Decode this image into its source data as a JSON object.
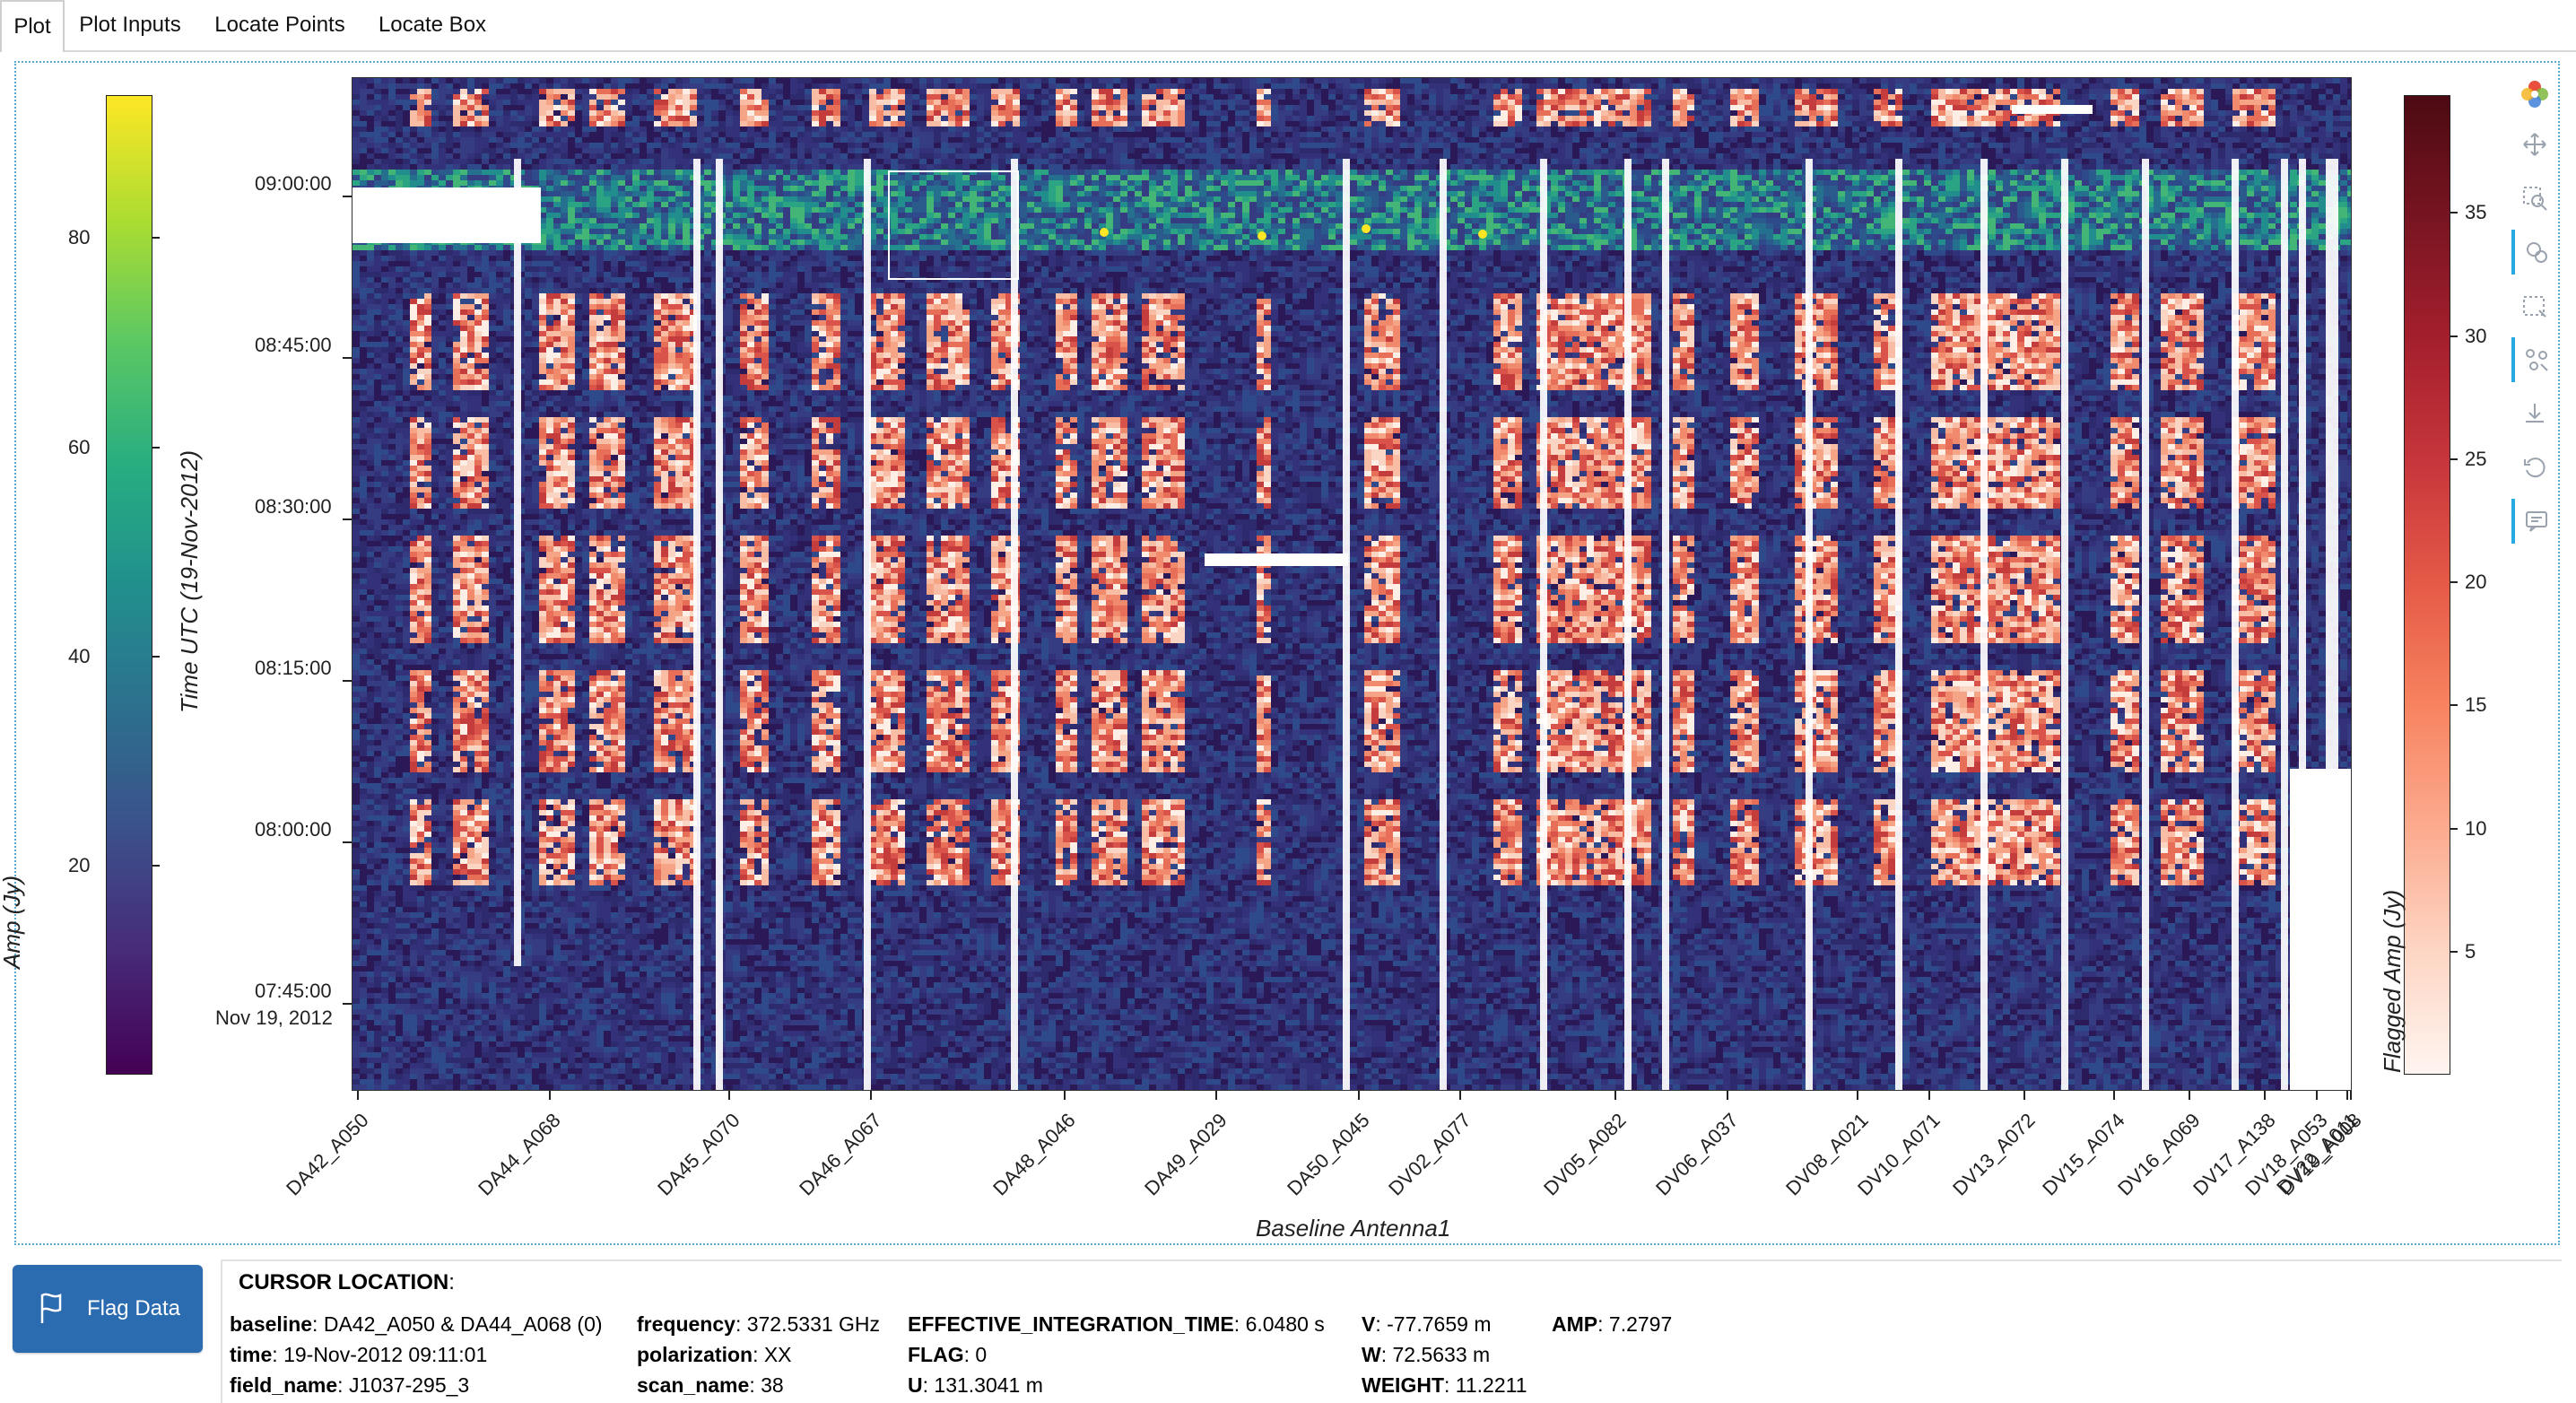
{
  "tabs": [
    {
      "label": "Plot",
      "active": true
    },
    {
      "label": "Plot Inputs",
      "active": false
    },
    {
      "label": "Locate Points",
      "active": false
    },
    {
      "label": "Locate Box",
      "active": false
    }
  ],
  "plot": {
    "left_colorbar": {
      "title": "Amp (Jy)",
      "ticks": [
        "80",
        "60",
        "40",
        "20"
      ],
      "colormap": "viridis"
    },
    "right_colorbar": {
      "title": "Flagged Amp (Jy)",
      "ticks": [
        "35",
        "30",
        "25",
        "20",
        "15",
        "10",
        "5"
      ],
      "colormap": "reds"
    },
    "y_axis": {
      "title": "Time UTC (19-Nov-2012)",
      "ticks": [
        "09:00:00",
        "08:45:00",
        "08:30:00",
        "08:15:00",
        "08:00:00",
        "07:45:00"
      ],
      "date_label": "Nov 19, 2012"
    },
    "x_axis": {
      "title": "Baseline Antenna1",
      "ticks": [
        "DA42_A050",
        "DA44_A068",
        "DA45_A070",
        "DA46_A067",
        "DA48_A046",
        "DA49_A029",
        "DA50_A045",
        "DV02_A077",
        "DV05_A082",
        "DV06_A037",
        "DV08_A021",
        "DV10_A071",
        "DV13_A072",
        "DV15_A074",
        "DV16_A069",
        "DV17_A138",
        "DV18_A053",
        "DV19_A008",
        "DV22_A011"
      ]
    }
  },
  "toolbar": [
    {
      "name": "bokeh-logo-icon"
    },
    {
      "name": "pan-icon"
    },
    {
      "name": "box-zoom-icon"
    },
    {
      "name": "tap-select-icon"
    },
    {
      "name": "box-select-icon"
    },
    {
      "name": "lasso-select-icon"
    },
    {
      "name": "save-icon"
    },
    {
      "name": "reset-icon"
    },
    {
      "name": "hover-icon"
    }
  ],
  "flag_button": {
    "label": "Flag Data"
  },
  "cursor": {
    "title": "CURSOR LOCATION",
    "baseline": {
      "key": "baseline",
      "value": "DA42_A050 & DA44_A068 (0)"
    },
    "time": {
      "key": "time",
      "value": "19-Nov-2012 09:11:01"
    },
    "field_name": {
      "key": "field_name",
      "value": "J1037-295_3"
    },
    "frequency": {
      "key": "frequency",
      "value": "372.5331 GHz"
    },
    "polarization": {
      "key": "polarization",
      "value": "XX"
    },
    "scan_name": {
      "key": "scan_name",
      "value": "38"
    },
    "effective_integration_time": {
      "key": "EFFECTIVE_INTEGRATION_TIME",
      "value": "6.0480 s"
    },
    "flag": {
      "key": "FLAG",
      "value": "0"
    },
    "u": {
      "key": "U",
      "value": "131.3041 m"
    },
    "v": {
      "key": "V",
      "value": "-77.7659 m"
    },
    "w": {
      "key": "W",
      "value": "72.5633 m"
    },
    "weight": {
      "key": "WEIGHT",
      "value": "11.2211"
    },
    "amp": {
      "key": "AMP",
      "value": "7.2797"
    }
  }
}
